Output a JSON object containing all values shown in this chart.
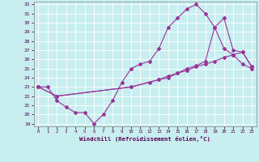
{
  "xlabel": "Windchill (Refroidissement éolien,°C)",
  "background_color": "#c8eef0",
  "line_color": "#993399",
  "grid_color": "#aadddd",
  "xmin": 0,
  "xmax": 23,
  "ymin": 19,
  "ymax": 32,
  "x_ticks": [
    0,
    1,
    2,
    3,
    4,
    5,
    6,
    7,
    8,
    9,
    10,
    11,
    12,
    13,
    14,
    15,
    16,
    17,
    18,
    19,
    20,
    21,
    22,
    23
  ],
  "y_ticks": [
    19,
    20,
    21,
    22,
    23,
    24,
    25,
    26,
    27,
    28,
    29,
    30,
    31,
    32
  ],
  "line1_x": [
    0,
    1,
    2,
    3,
    4,
    5,
    6,
    7,
    8,
    9,
    10,
    11,
    12,
    13,
    14,
    15,
    16,
    17,
    18,
    19,
    20,
    21,
    22,
    23
  ],
  "line1_y": [
    23.0,
    23.0,
    21.5,
    20.8,
    20.2,
    20.2,
    19.0,
    20.0,
    21.5,
    23.5,
    25.0,
    25.5,
    25.8,
    27.2,
    29.5,
    30.5,
    31.5,
    32.0,
    31.0,
    29.5,
    27.2,
    26.5,
    25.5,
    25.0
  ],
  "line2_x": [
    0,
    2,
    10,
    13,
    14,
    15,
    16,
    17,
    18,
    19,
    20,
    21,
    22,
    23
  ],
  "line2_y": [
    23.0,
    22.0,
    23.0,
    23.8,
    24.2,
    24.5,
    24.8,
    25.2,
    25.5,
    25.8,
    26.2,
    26.5,
    26.8,
    25.2
  ],
  "line3_x": [
    0,
    2,
    10,
    12,
    13,
    14,
    15,
    16,
    17,
    18,
    19,
    20,
    21,
    22,
    23
  ],
  "line3_y": [
    23.0,
    22.0,
    23.0,
    23.5,
    23.8,
    24.0,
    24.5,
    25.0,
    25.3,
    25.8,
    29.5,
    30.5,
    27.0,
    26.8,
    25.2
  ]
}
